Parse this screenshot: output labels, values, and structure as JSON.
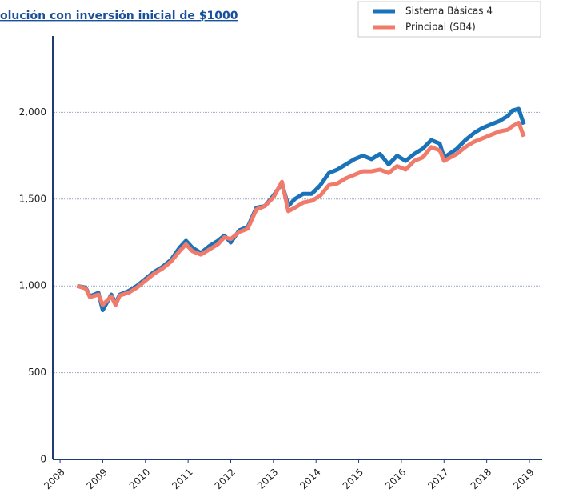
{
  "chart_data": {
    "type": "line",
    "title": "olución con inversión inicial de $1000",
    "x": [
      2008.4,
      2008.6,
      2008.7,
      2008.9,
      2009.0,
      2009.2,
      2009.3,
      2009.4,
      2009.6,
      2009.8,
      2010.0,
      2010.2,
      2010.4,
      2010.6,
      2010.8,
      2010.95,
      2011.1,
      2011.3,
      2011.5,
      2011.7,
      2011.85,
      2012.0,
      2012.2,
      2012.4,
      2012.6,
      2012.8,
      2013.0,
      2013.2,
      2013.35,
      2013.5,
      2013.7,
      2013.9,
      2014.1,
      2014.3,
      2014.5,
      2014.7,
      2014.9,
      2015.1,
      2015.3,
      2015.5,
      2015.7,
      2015.9,
      2016.1,
      2016.3,
      2016.5,
      2016.7,
      2016.9,
      2017.0,
      2017.3,
      2017.5,
      2017.7,
      2017.9,
      2018.1,
      2018.3,
      2018.5,
      2018.6,
      2018.75,
      2018.87
    ],
    "series": [
      {
        "name": "Sistema Básicas 4",
        "color": "#1a73b8",
        "values": [
          1000,
          990,
          940,
          960,
          860,
          950,
          900,
          950,
          970,
          1000,
          1040,
          1080,
          1110,
          1150,
          1220,
          1260,
          1220,
          1190,
          1230,
          1260,
          1290,
          1250,
          1320,
          1340,
          1450,
          1460,
          1520,
          1590,
          1460,
          1500,
          1530,
          1530,
          1580,
          1650,
          1670,
          1700,
          1730,
          1750,
          1730,
          1760,
          1700,
          1750,
          1720,
          1760,
          1790,
          1840,
          1820,
          1740,
          1790,
          1840,
          1880,
          1910,
          1930,
          1950,
          1980,
          2010,
          2020,
          1930
        ]
      },
      {
        "name": "Principal (SB4)",
        "color": "#f07b6b",
        "values": [
          1000,
          985,
          935,
          950,
          890,
          940,
          890,
          945,
          960,
          990,
          1030,
          1070,
          1100,
          1140,
          1200,
          1240,
          1200,
          1180,
          1210,
          1240,
          1280,
          1270,
          1310,
          1330,
          1440,
          1460,
          1510,
          1600,
          1430,
          1450,
          1480,
          1490,
          1520,
          1580,
          1590,
          1620,
          1640,
          1660,
          1660,
          1670,
          1650,
          1690,
          1670,
          1720,
          1740,
          1800,
          1780,
          1720,
          1760,
          1800,
          1830,
          1850,
          1870,
          1890,
          1900,
          1920,
          1940,
          1860
        ]
      }
    ],
    "xlim": [
      2007.83,
      2019.3
    ],
    "xticks": [
      2008,
      2009,
      2010,
      2011,
      2012,
      2013,
      2014,
      2015,
      2016,
      2017,
      2018,
      2019
    ],
    "ylim": [
      0,
      2440
    ],
    "yticks": [
      0,
      500,
      {
        "value": 1000,
        "label": "1,000"
      },
      {
        "value": 1500,
        "label": "1,500"
      },
      {
        "value": 2000,
        "label": "2,000"
      }
    ],
    "grid": true
  }
}
